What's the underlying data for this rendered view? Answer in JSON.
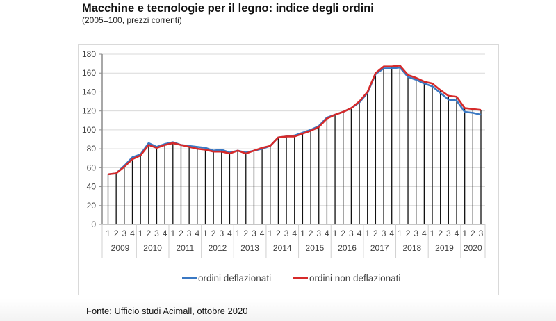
{
  "header": {
    "title": "Macchine e tecnologie per il legno: indice degli ordini",
    "subtitle": "(2005=100, prezzi correnti)"
  },
  "footer": {
    "source": "Fonte: Ufficio studi Acimall, ottobre 2020"
  },
  "chart_data": {
    "type": "line",
    "title": "Macchine e tecnologie per il legno: indice degli ordini",
    "subtitle": "(2005=100, prezzi correnti)",
    "xlabel": "",
    "ylabel": "",
    "ylim": [
      0,
      180
    ],
    "yticks": [
      0,
      20,
      40,
      60,
      80,
      100,
      120,
      140,
      160,
      180
    ],
    "grid": true,
    "legend_position": "bottom",
    "drop_lines": true,
    "years": [
      {
        "label": "2009",
        "quarters": [
          "1",
          "2",
          "3",
          "4"
        ]
      },
      {
        "label": "2010",
        "quarters": [
          "1",
          "2",
          "3",
          "4"
        ]
      },
      {
        "label": "2011",
        "quarters": [
          "1",
          "2",
          "3",
          "4"
        ]
      },
      {
        "label": "2012",
        "quarters": [
          "1",
          "2",
          "3",
          "4"
        ]
      },
      {
        "label": "2013",
        "quarters": [
          "1",
          "2",
          "3",
          "4"
        ]
      },
      {
        "label": "2014",
        "quarters": [
          "1",
          "2",
          "3",
          "4"
        ]
      },
      {
        "label": "2015",
        "quarters": [
          "1",
          "2",
          "3",
          "4"
        ]
      },
      {
        "label": "2016",
        "quarters": [
          "1",
          "2",
          "3",
          "4"
        ]
      },
      {
        "label": "2017",
        "quarters": [
          "1",
          "2",
          "3",
          "4"
        ]
      },
      {
        "label": "2018",
        "quarters": [
          "1",
          "2",
          "3",
          "4"
        ]
      },
      {
        "label": "2019",
        "quarters": [
          "1",
          "2",
          "3",
          "4"
        ]
      },
      {
        "label": "2020",
        "quarters": [
          "1",
          "2",
          "3"
        ]
      }
    ],
    "series": [
      {
        "name": "ordini deflazionati",
        "color": "#3a78c3",
        "values": [
          53,
          54,
          62,
          71,
          74,
          86,
          82,
          85,
          87,
          84,
          83,
          82,
          81,
          78,
          79,
          76,
          78,
          76,
          78,
          80,
          83,
          92,
          93,
          94,
          97,
          100,
          104,
          113,
          116,
          119,
          123,
          129,
          139,
          159,
          165,
          165,
          166,
          156,
          153,
          149,
          146,
          139,
          132,
          131,
          119,
          118,
          116
        ]
      },
      {
        "name": "ordini non deflazionati",
        "color": "#d62a2a",
        "values": [
          53,
          54,
          61,
          69,
          73,
          84,
          81,
          84,
          86,
          84,
          82,
          80,
          79,
          77,
          77,
          75,
          78,
          75,
          78,
          81,
          83,
          92,
          93,
          93,
          96,
          99,
          103,
          112,
          116,
          119,
          123,
          130,
          140,
          160,
          167,
          167,
          168,
          158,
          155,
          151,
          149,
          142,
          136,
          135,
          123,
          122,
          121
        ]
      }
    ]
  }
}
